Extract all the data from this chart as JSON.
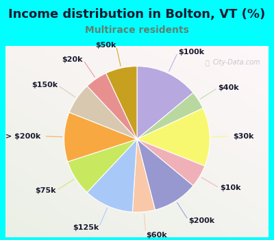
{
  "title": "Income distribution in Bolton, VT (%)",
  "subtitle": "Multirace residents",
  "watermark": "© City-Data.com",
  "bg_color": "#00FFFF",
  "labels": [
    "$100k",
    "$40k",
    "$30k",
    "$10k",
    "$200k",
    "$60k",
    "$125k",
    "$75k",
    "> $200k",
    "$150k",
    "$20k",
    "$50k"
  ],
  "values": [
    14,
    4,
    13,
    5,
    10,
    5,
    11,
    8,
    11,
    7,
    5,
    7
  ],
  "colors": [
    "#b8a8e0",
    "#b8d8a0",
    "#f8f870",
    "#f0b0b8",
    "#9898d0",
    "#f8c8a8",
    "#a8c8f8",
    "#c8e860",
    "#f8a840",
    "#d8c8b0",
    "#e89090",
    "#c8a020"
  ],
  "title_fontsize": 13,
  "subtitle_fontsize": 10,
  "label_fontsize": 8,
  "figsize": [
    4.0,
    3.5
  ],
  "dpi": 100,
  "subtitle_color": "#608070",
  "title_color": "#1a1a2e"
}
